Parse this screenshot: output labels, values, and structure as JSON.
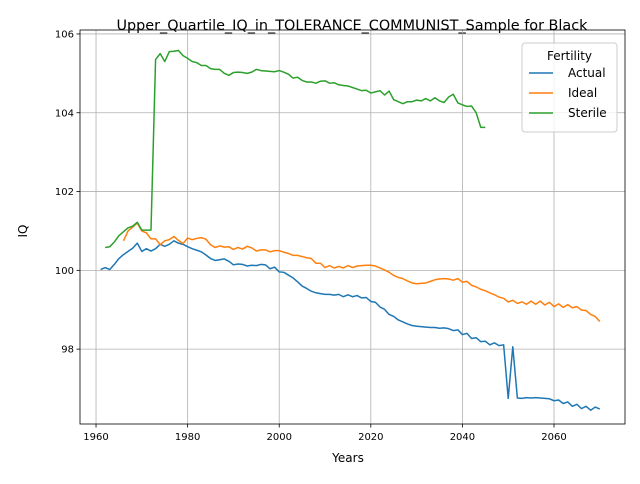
{
  "chart_data": {
    "type": "line",
    "title": "Upper_Quartile_IQ_in_TOLERANCE_COMMUNIST_Sample for Black",
    "xlabel": "Years",
    "ylabel": "IQ",
    "xlim": [
      1956.5,
      2075.5
    ],
    "ylim": [
      96.1,
      106.1
    ],
    "xticks": [
      1960,
      1980,
      2000,
      2020,
      2040,
      2060
    ],
    "yticks": [
      98,
      100,
      102,
      104,
      106
    ],
    "grid": true,
    "legend": {
      "title": "Fertility",
      "placement": "top-right"
    },
    "series": [
      {
        "name": "Actual",
        "color": "#1f77b4",
        "x": [
          1961,
          1962,
          1963,
          1964,
          1965,
          1966,
          1967,
          1968,
          1969,
          1970,
          1971,
          1972,
          1973,
          1974,
          1975,
          1976,
          1977,
          1978,
          1979,
          1980,
          1981,
          1982,
          1983,
          1984,
          1985,
          1986,
          1987,
          1988,
          1989,
          1990,
          1991,
          1992,
          1993,
          1994,
          1995,
          1996,
          1997,
          1998,
          1999,
          2000,
          2001,
          2002,
          2003,
          2004,
          2005,
          2006,
          2007,
          2008,
          2009,
          2010,
          2011,
          2012,
          2013,
          2014,
          2015,
          2016,
          2017,
          2018,
          2019,
          2020,
          2021,
          2022,
          2023,
          2024,
          2025,
          2026,
          2027,
          2028,
          2029,
          2030,
          2031,
          2032,
          2033,
          2034,
          2035,
          2036,
          2037,
          2038,
          2039,
          2040,
          2041,
          2042,
          2043,
          2044,
          2045,
          2046,
          2047,
          2048,
          2049,
          2050,
          2051,
          2052,
          2053,
          2054,
          2055,
          2056,
          2057,
          2058,
          2059,
          2060,
          2061,
          2062,
          2063,
          2064,
          2065,
          2066,
          2067,
          2068,
          2069,
          2070
        ],
        "values": [
          100.02,
          100.07,
          100.02,
          100.15,
          100.3,
          100.4,
          100.48,
          100.56,
          100.69,
          100.48,
          100.55,
          100.49,
          100.55,
          100.66,
          100.61,
          100.66,
          100.75,
          100.69,
          100.66,
          100.6,
          100.55,
          100.51,
          100.47,
          100.39,
          100.3,
          100.25,
          100.27,
          100.29,
          100.23,
          100.14,
          100.16,
          100.15,
          100.11,
          100.13,
          100.12,
          100.15,
          100.14,
          100.04,
          100.08,
          99.96,
          99.95,
          99.88,
          99.81,
          99.71,
          99.6,
          99.54,
          99.47,
          99.43,
          99.41,
          99.39,
          99.39,
          99.37,
          99.39,
          99.33,
          99.38,
          99.33,
          99.36,
          99.3,
          99.31,
          99.21,
          99.19,
          99.07,
          99.01,
          98.88,
          98.83,
          98.74,
          98.69,
          98.64,
          98.6,
          98.58,
          98.57,
          98.56,
          98.55,
          98.55,
          98.53,
          98.54,
          98.52,
          98.47,
          98.49,
          98.37,
          98.4,
          98.27,
          98.29,
          98.19,
          98.2,
          98.11,
          98.16,
          98.09,
          98.11,
          96.75,
          98.06,
          96.76,
          96.75,
          96.77,
          96.76,
          96.77,
          96.76,
          96.75,
          96.74,
          96.69,
          96.71,
          96.62,
          96.66,
          96.55,
          96.6,
          96.49,
          96.55,
          96.45,
          96.53,
          96.48
        ]
      },
      {
        "name": "Ideal",
        "color": "#ff7f0e",
        "x": [
          1966,
          1967,
          1968,
          1969,
          1970,
          1971,
          1972,
          1973,
          1974,
          1975,
          1976,
          1977,
          1978,
          1979,
          1980,
          1981,
          1982,
          1983,
          1984,
          1985,
          1986,
          1987,
          1988,
          1989,
          1990,
          1991,
          1992,
          1993,
          1994,
          1995,
          1996,
          1997,
          1998,
          1999,
          2000,
          2001,
          2002,
          2003,
          2004,
          2005,
          2006,
          2007,
          2008,
          2009,
          2010,
          2011,
          2012,
          2013,
          2014,
          2015,
          2016,
          2017,
          2018,
          2019,
          2020,
          2021,
          2022,
          2023,
          2024,
          2025,
          2026,
          2027,
          2028,
          2029,
          2030,
          2031,
          2032,
          2033,
          2034,
          2035,
          2036,
          2037,
          2038,
          2039,
          2040,
          2041,
          2042,
          2043,
          2044,
          2045,
          2046,
          2047,
          2048,
          2049,
          2050,
          2051,
          2052,
          2053,
          2054,
          2055,
          2056,
          2057,
          2058,
          2059,
          2060,
          2061,
          2062,
          2063,
          2064,
          2065,
          2066,
          2067,
          2068,
          2069,
          2070
        ],
        "values": [
          100.75,
          101.0,
          101.1,
          101.2,
          101.0,
          100.95,
          100.8,
          100.8,
          100.65,
          100.75,
          100.78,
          100.86,
          100.76,
          100.68,
          100.82,
          100.78,
          100.81,
          100.83,
          100.79,
          100.65,
          100.58,
          100.62,
          100.59,
          100.6,
          100.53,
          100.58,
          100.54,
          100.61,
          100.57,
          100.49,
          100.52,
          100.52,
          100.47,
          100.5,
          100.5,
          100.46,
          100.43,
          100.38,
          100.38,
          100.35,
          100.32,
          100.3,
          100.18,
          100.18,
          100.07,
          100.12,
          100.06,
          100.1,
          100.06,
          100.12,
          100.07,
          100.11,
          100.12,
          100.13,
          100.13,
          100.11,
          100.06,
          100.01,
          99.95,
          99.87,
          99.82,
          99.79,
          99.73,
          99.68,
          99.66,
          99.67,
          99.68,
          99.72,
          99.76,
          99.78,
          99.79,
          99.78,
          99.75,
          99.79,
          99.7,
          99.72,
          99.62,
          99.58,
          99.52,
          99.48,
          99.43,
          99.38,
          99.32,
          99.29,
          99.2,
          99.24,
          99.16,
          99.2,
          99.14,
          99.22,
          99.14,
          99.22,
          99.12,
          99.19,
          99.08,
          99.15,
          99.06,
          99.13,
          99.05,
          99.08,
          98.99,
          98.98,
          98.88,
          98.83,
          98.7
        ]
      },
      {
        "name": "Sterile",
        "color": "#2ca02c",
        "x": [
          1962,
          1963,
          1964,
          1965,
          1966,
          1967,
          1968,
          1969,
          1970,
          1971,
          1972,
          1973,
          1974,
          1975,
          1976,
          1977,
          1978,
          1979,
          1980,
          1981,
          1982,
          1983,
          1984,
          1985,
          1986,
          1987,
          1988,
          1989,
          1990,
          1991,
          1992,
          1993,
          1994,
          1995,
          1996,
          1997,
          1998,
          1999,
          2000,
          2001,
          2002,
          2003,
          2004,
          2005,
          2006,
          2007,
          2008,
          2009,
          2010,
          2011,
          2012,
          2013,
          2014,
          2015,
          2016,
          2017,
          2018,
          2019,
          2020,
          2021,
          2022,
          2023,
          2024,
          2025,
          2026,
          2027,
          2028,
          2029,
          2030,
          2031,
          2032,
          2033,
          2034,
          2035,
          2036,
          2037,
          2038,
          2039,
          2040,
          2041,
          2042,
          2043,
          2044,
          2045
        ],
        "values": [
          100.58,
          100.6,
          100.72,
          100.88,
          100.98,
          101.08,
          101.12,
          101.22,
          101.02,
          101.02,
          101.02,
          105.35,
          105.5,
          105.3,
          105.55,
          105.56,
          105.58,
          105.45,
          105.38,
          105.3,
          105.27,
          105.2,
          105.2,
          105.12,
          105.1,
          105.1,
          105.0,
          104.95,
          105.02,
          105.03,
          105.02,
          105.0,
          105.03,
          105.1,
          105.07,
          105.06,
          105.05,
          105.04,
          105.07,
          105.03,
          104.98,
          104.88,
          104.9,
          104.82,
          104.78,
          104.78,
          104.75,
          104.8,
          104.81,
          104.75,
          104.76,
          104.71,
          104.69,
          104.68,
          104.64,
          104.6,
          104.56,
          104.57,
          104.5,
          104.53,
          104.56,
          104.45,
          104.55,
          104.33,
          104.28,
          104.23,
          104.28,
          104.28,
          104.32,
          104.3,
          104.36,
          104.3,
          104.38,
          104.3,
          104.26,
          104.4,
          104.47,
          104.25,
          104.2,
          104.16,
          104.17,
          104.0,
          103.63,
          103.63
        ]
      }
    ]
  }
}
